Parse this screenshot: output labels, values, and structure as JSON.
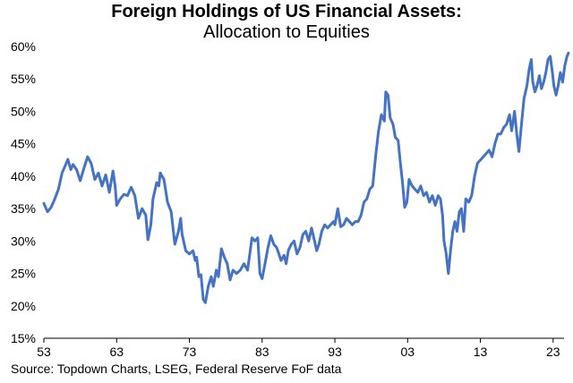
{
  "chart_data": {
    "type": "line",
    "title": "Foreign Holdings of US Financial Assets:",
    "subtitle": "Allocation to Equities",
    "xlabel": "",
    "ylabel": "",
    "xlim": [
      1953,
      2024.5
    ],
    "ylim": [
      15,
      60
    ],
    "x_tick_labels": [
      "53",
      "63",
      "73",
      "83",
      "93",
      "03",
      "13",
      "23"
    ],
    "x_tick_values": [
      1953,
      1963,
      1973,
      1983,
      1993,
      2003,
      2013,
      2023
    ],
    "y_tick_labels": [
      "15%",
      "20%",
      "25%",
      "30%",
      "35%",
      "40%",
      "45%",
      "50%",
      "55%",
      "60%"
    ],
    "y_tick_values": [
      15,
      20,
      25,
      30,
      35,
      40,
      45,
      50,
      55,
      60
    ],
    "grid": false,
    "line_color": "#4472C4",
    "series": [
      {
        "name": "Allocation to Equities",
        "points": [
          [
            1953.0,
            35.8
          ],
          [
            1953.5,
            34.5
          ],
          [
            1954.0,
            35.2
          ],
          [
            1954.5,
            36.5
          ],
          [
            1955.0,
            38.0
          ],
          [
            1955.5,
            40.5
          ],
          [
            1956.0,
            41.8
          ],
          [
            1956.3,
            42.6
          ],
          [
            1956.7,
            41.0
          ],
          [
            1957.0,
            41.8
          ],
          [
            1957.5,
            41.0
          ],
          [
            1958.0,
            39.3
          ],
          [
            1958.5,
            41.2
          ],
          [
            1959.0,
            43.0
          ],
          [
            1959.5,
            42.0
          ],
          [
            1960.0,
            39.5
          ],
          [
            1960.5,
            40.5
          ],
          [
            1961.0,
            38.5
          ],
          [
            1961.5,
            40.2
          ],
          [
            1962.0,
            37.5
          ],
          [
            1962.5,
            40.8
          ],
          [
            1962.8,
            38.5
          ],
          [
            1963.0,
            35.5
          ],
          [
            1963.5,
            36.5
          ],
          [
            1964.0,
            37.2
          ],
          [
            1964.5,
            37.0
          ],
          [
            1965.0,
            38.3
          ],
          [
            1965.5,
            37.0
          ],
          [
            1966.0,
            33.5
          ],
          [
            1966.5,
            35.0
          ],
          [
            1967.0,
            34.0
          ],
          [
            1967.3,
            30.2
          ],
          [
            1967.7,
            32.5
          ],
          [
            1968.0,
            36.5
          ],
          [
            1968.5,
            39.0
          ],
          [
            1968.8,
            38.5
          ],
          [
            1969.0,
            40.5
          ],
          [
            1969.5,
            39.5
          ],
          [
            1970.0,
            36.0
          ],
          [
            1970.5,
            34.5
          ],
          [
            1971.0,
            29.5
          ],
          [
            1971.5,
            31.5
          ],
          [
            1971.8,
            33.5
          ],
          [
            1972.0,
            31.0
          ],
          [
            1972.5,
            28.5
          ],
          [
            1973.0,
            28.0
          ],
          [
            1973.5,
            28.5
          ],
          [
            1973.8,
            27.0
          ],
          [
            1974.0,
            27.5
          ],
          [
            1974.3,
            24.5
          ],
          [
            1974.6,
            24.8
          ],
          [
            1974.9,
            21.0
          ],
          [
            1975.2,
            20.5
          ],
          [
            1975.6,
            23.0
          ],
          [
            1976.0,
            24.5
          ],
          [
            1976.3,
            23.0
          ],
          [
            1976.7,
            25.5
          ],
          [
            1977.0,
            24.5
          ],
          [
            1977.4,
            28.8
          ],
          [
            1977.8,
            27.5
          ],
          [
            1978.2,
            26.5
          ],
          [
            1978.6,
            24.0
          ],
          [
            1979.0,
            25.5
          ],
          [
            1979.5,
            25.0
          ],
          [
            1980.0,
            25.5
          ],
          [
            1980.5,
            26.5
          ],
          [
            1981.0,
            25.5
          ],
          [
            1981.3,
            28.0
          ],
          [
            1981.6,
            30.5
          ],
          [
            1982.0,
            30.0
          ],
          [
            1982.4,
            30.5
          ],
          [
            1982.7,
            25.0
          ],
          [
            1983.0,
            24.2
          ],
          [
            1983.4,
            26.5
          ],
          [
            1983.8,
            29.0
          ],
          [
            1984.2,
            30.8
          ],
          [
            1984.6,
            29.5
          ],
          [
            1985.0,
            29.0
          ],
          [
            1985.3,
            28.0
          ],
          [
            1985.6,
            27.0
          ],
          [
            1986.0,
            27.8
          ],
          [
            1986.3,
            26.5
          ],
          [
            1986.6,
            28.5
          ],
          [
            1987.0,
            29.5
          ],
          [
            1987.4,
            30.0
          ],
          [
            1987.8,
            28.0
          ],
          [
            1988.2,
            29.0
          ],
          [
            1988.6,
            31.0
          ],
          [
            1989.0,
            31.5
          ],
          [
            1989.4,
            30.0
          ],
          [
            1989.8,
            32.0
          ],
          [
            1990.2,
            30.0
          ],
          [
            1990.5,
            28.5
          ],
          [
            1990.8,
            29.5
          ],
          [
            1991.2,
            31.5
          ],
          [
            1991.6,
            32.5
          ],
          [
            1992.0,
            32.0
          ],
          [
            1992.4,
            32.5
          ],
          [
            1992.8,
            33.0
          ],
          [
            1993.0,
            32.5
          ],
          [
            1993.4,
            35.0
          ],
          [
            1993.8,
            32.2
          ],
          [
            1994.2,
            32.5
          ],
          [
            1994.6,
            33.5
          ],
          [
            1995.0,
            33.0
          ],
          [
            1995.4,
            32.5
          ],
          [
            1995.8,
            33.0
          ],
          [
            1996.2,
            33.0
          ],
          [
            1996.6,
            34.0
          ],
          [
            1997.0,
            36.0
          ],
          [
            1997.4,
            36.5
          ],
          [
            1997.8,
            38.0
          ],
          [
            1998.2,
            38.5
          ],
          [
            1998.6,
            43.0
          ],
          [
            1999.0,
            47.0
          ],
          [
            1999.4,
            49.5
          ],
          [
            1999.8,
            48.5
          ],
          [
            2000.0,
            53.0
          ],
          [
            2000.3,
            52.5
          ],
          [
            2000.6,
            49.0
          ],
          [
            2001.0,
            48.0
          ],
          [
            2001.3,
            46.0
          ],
          [
            2001.7,
            45.5
          ],
          [
            2002.0,
            42.0
          ],
          [
            2002.3,
            39.0
          ],
          [
            2002.6,
            35.2
          ],
          [
            2002.9,
            36.0
          ],
          [
            2003.2,
            39.5
          ],
          [
            2003.6,
            38.5
          ],
          [
            2004.0,
            38.0
          ],
          [
            2004.4,
            37.5
          ],
          [
            2004.8,
            38.5
          ],
          [
            2005.2,
            37.0
          ],
          [
            2005.6,
            37.5
          ],
          [
            2006.0,
            36.0
          ],
          [
            2006.4,
            37.0
          ],
          [
            2006.8,
            35.5
          ],
          [
            2007.2,
            37.0
          ],
          [
            2007.5,
            36.5
          ],
          [
            2007.8,
            34.0
          ],
          [
            2008.0,
            30.0
          ],
          [
            2008.3,
            28.0
          ],
          [
            2008.6,
            25.0
          ],
          [
            2008.9,
            28.5
          ],
          [
            2009.2,
            31.5
          ],
          [
            2009.5,
            33.0
          ],
          [
            2009.8,
            31.5
          ],
          [
            2010.1,
            34.5
          ],
          [
            2010.4,
            35.0
          ],
          [
            2010.7,
            31.5
          ],
          [
            2011.0,
            36.5
          ],
          [
            2011.4,
            36.0
          ],
          [
            2011.8,
            37.0
          ],
          [
            2012.2,
            40.0
          ],
          [
            2012.6,
            42.0
          ],
          [
            2013.0,
            42.5
          ],
          [
            2013.4,
            43.0
          ],
          [
            2013.8,
            43.5
          ],
          [
            2014.2,
            44.0
          ],
          [
            2014.6,
            43.0
          ],
          [
            2015.0,
            45.0
          ],
          [
            2015.4,
            46.5
          ],
          [
            2015.8,
            46.5
          ],
          [
            2016.2,
            47.5
          ],
          [
            2016.6,
            48.0
          ],
          [
            2017.0,
            49.5
          ],
          [
            2017.3,
            47.0
          ],
          [
            2017.7,
            50.0
          ],
          [
            2018.0,
            46.5
          ],
          [
            2018.3,
            43.8
          ],
          [
            2018.6,
            47.5
          ],
          [
            2019.0,
            52.0
          ],
          [
            2019.4,
            54.0
          ],
          [
            2019.7,
            56.5
          ],
          [
            2020.0,
            58.0
          ],
          [
            2020.2,
            54.5
          ],
          [
            2020.5,
            53.0
          ],
          [
            2020.8,
            54.0
          ],
          [
            2021.1,
            55.5
          ],
          [
            2021.4,
            53.5
          ],
          [
            2021.7,
            54.5
          ],
          [
            2022.0,
            56.0
          ],
          [
            2022.3,
            58.0
          ],
          [
            2022.6,
            58.5
          ],
          [
            2022.9,
            56.0
          ],
          [
            2023.1,
            54.0
          ],
          [
            2023.4,
            52.5
          ],
          [
            2023.7,
            54.0
          ],
          [
            2024.0,
            56.0
          ],
          [
            2024.3,
            54.5
          ],
          [
            2024.6,
            57.0
          ],
          [
            2024.9,
            58.5
          ],
          [
            2025.1,
            59.0
          ]
        ]
      }
    ],
    "source_text": "Source: Topdown Charts, LSEG, Federal Reserve FoF data"
  }
}
